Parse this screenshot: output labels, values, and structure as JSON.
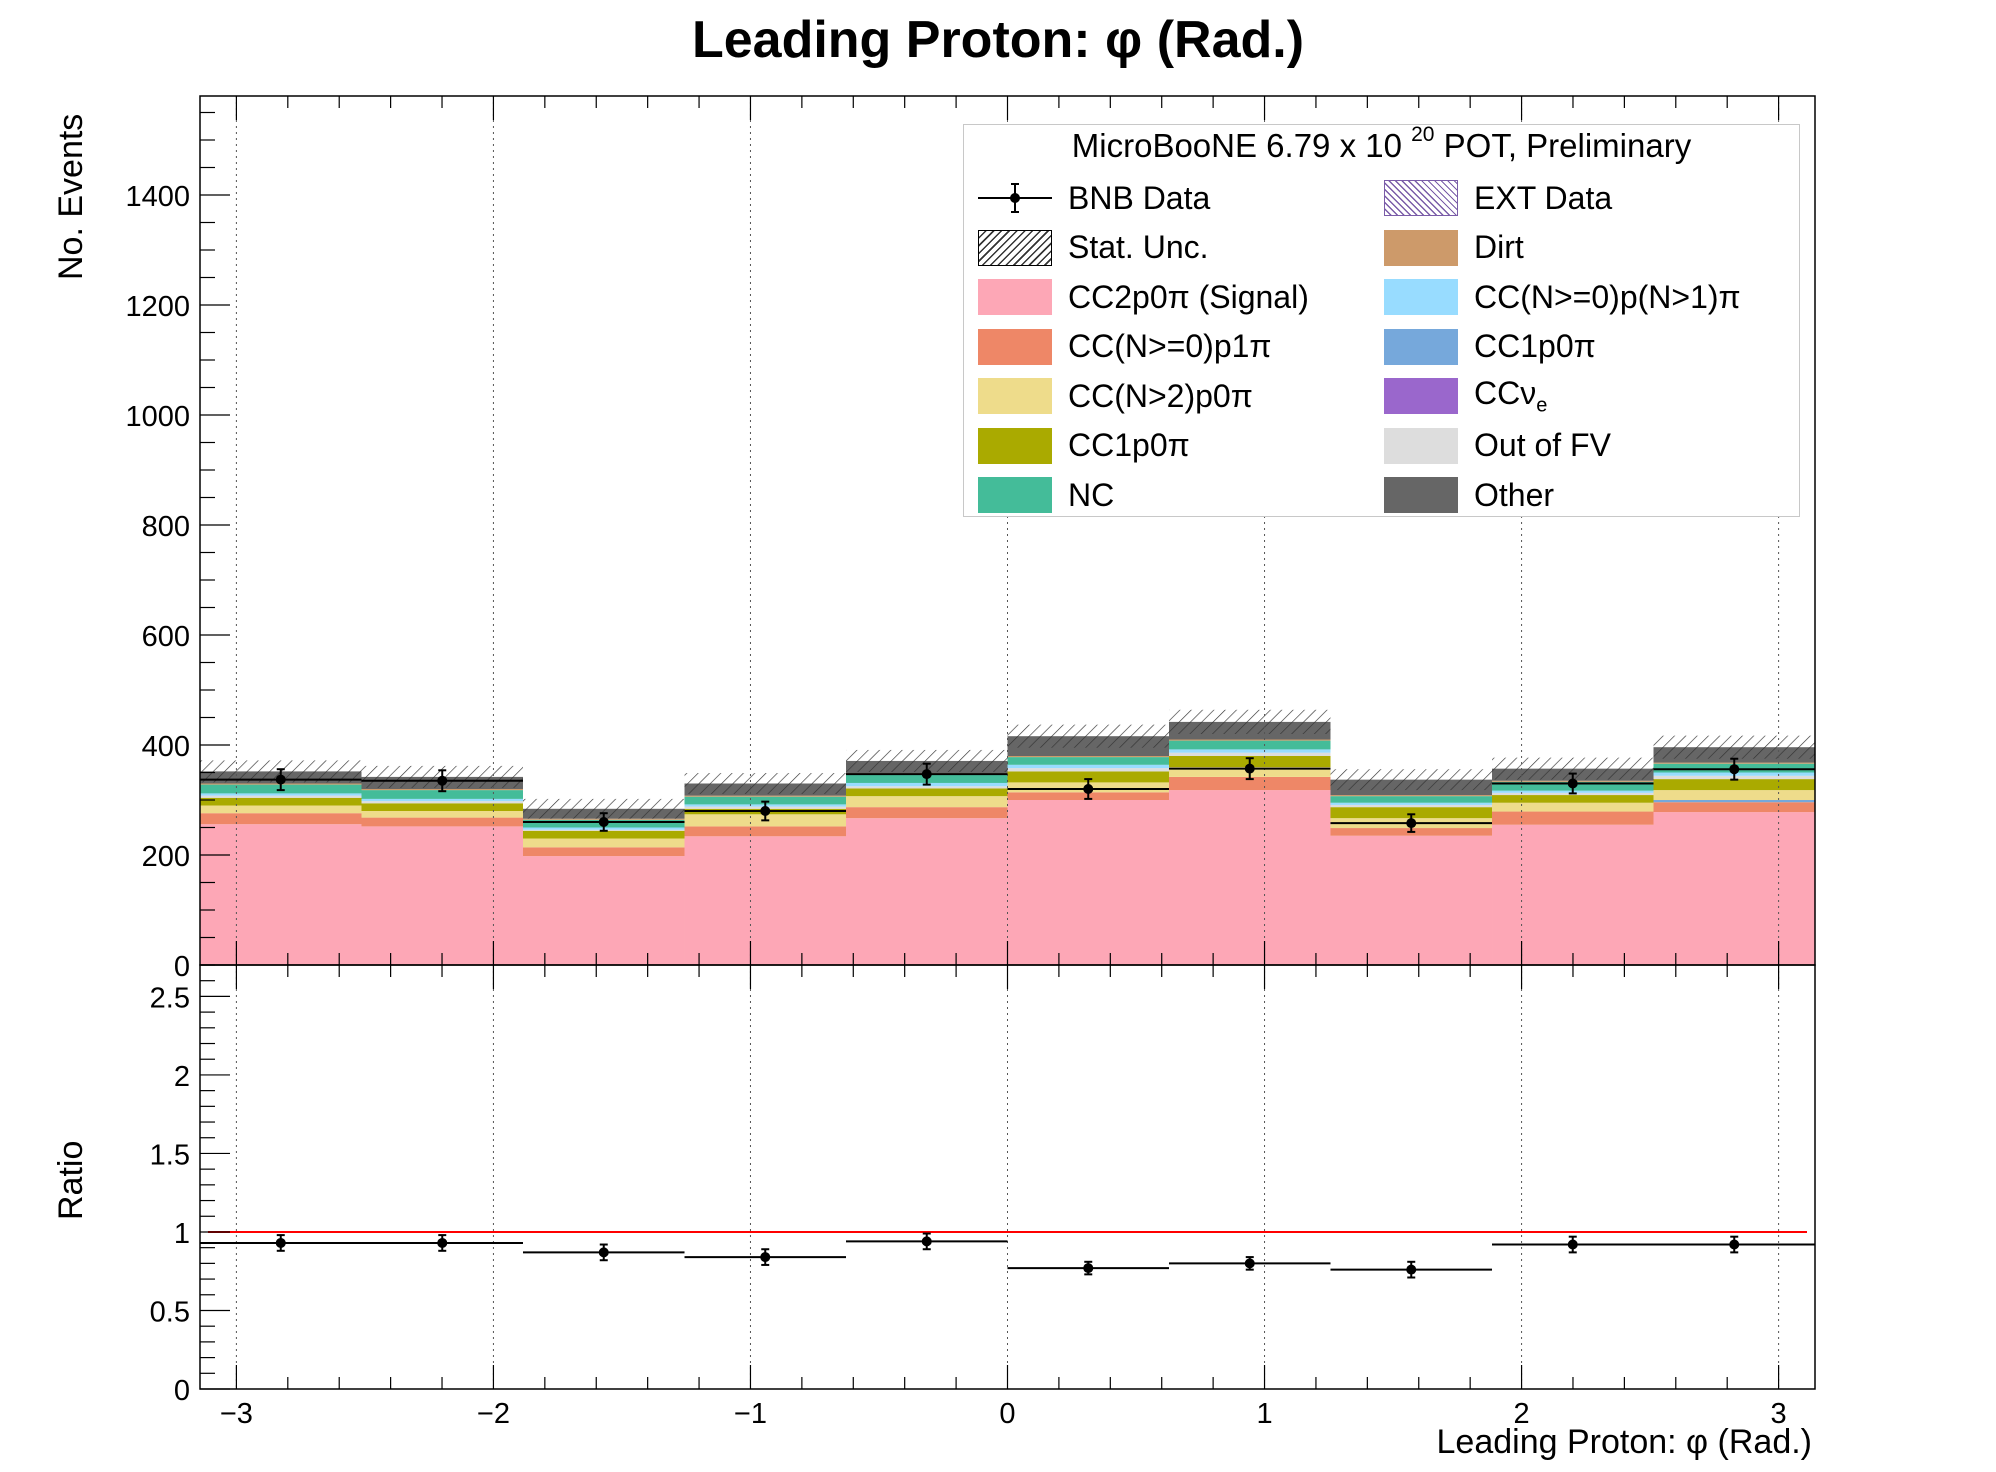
{
  "title": "Leading Proton:  φ (Rad.)",
  "legend": {
    "header_prefix": "MicroBooNE 6.79 x 10",
    "header_exponent": "20",
    "header_suffix": " POT, Preliminary",
    "items": [
      {
        "label": "BNB Data",
        "kind": "data",
        "color": "#000000"
      },
      {
        "label": "EXT Data",
        "kind": "hatch-ext",
        "color": "#7a5ca8"
      },
      {
        "label": "Stat. Unc.",
        "kind": "hatch-stat",
        "color": "#000000"
      },
      {
        "label": "Dirt",
        "kind": "fill",
        "color": "#cd9a6a"
      },
      {
        "label": "CC2p0π (Signal)",
        "kind": "fill",
        "color": "#fda7b6"
      },
      {
        "label": "CC(N>=0)p(N>1)π",
        "kind": "fill",
        "color": "#98dcff"
      },
      {
        "label": "CC(N>=0)p1π",
        "kind": "fill",
        "color": "#ee8767"
      },
      {
        "label": "CC1p0π",
        "kind": "fill",
        "color": "#76a8db"
      },
      {
        "label": "CC(N>2)p0π",
        "kind": "fill",
        "color": "#eedc8b"
      },
      {
        "label": "CCν",
        "label_sub": "e",
        "kind": "fill",
        "color": "#9a67cc"
      },
      {
        "label": "CC1p0π",
        "kind": "fill",
        "color": "#aaaa00"
      },
      {
        "label": "Out of FV",
        "kind": "fill",
        "color": "#dddddd"
      },
      {
        "label": "NC",
        "kind": "fill",
        "color": "#44bc99"
      },
      {
        "label": "Other",
        "kind": "fill",
        "color": "#666666"
      }
    ]
  },
  "chart_data": [
    {
      "type": "bar",
      "stacked": true,
      "title": "Leading Proton:  φ (Rad.)",
      "ylabel": "No. Events",
      "xlim": [
        -3.1416,
        3.1416
      ],
      "ylim": [
        0,
        1580
      ],
      "yticks": [
        0,
        200,
        400,
        600,
        800,
        1000,
        1200,
        1400
      ],
      "ytick_labels": [
        "0",
        "200",
        "400",
        "600",
        "800",
        "1000",
        "1200",
        "1400"
      ],
      "xticks": [
        -3,
        -2,
        -1,
        0,
        1,
        2,
        3
      ],
      "grid_x": true,
      "bin_edges": [
        -3.1416,
        -2.5133,
        -1.885,
        -1.2566,
        -0.6283,
        0,
        0.6283,
        1.2566,
        1.885,
        2.5133,
        3.1416
      ],
      "series": [
        {
          "name": "CC2p0π (Signal)",
          "color": "#fda7b6",
          "values": [
            256,
            252,
            198,
            234,
            267,
            300,
            318,
            235,
            255,
            278
          ]
        },
        {
          "name": "CC(N>=0)p1π",
          "color": "#ee8767",
          "values": [
            20,
            16,
            16,
            18,
            20,
            14,
            24,
            14,
            24,
            18
          ]
        },
        {
          "name": "CC1p0π",
          "color": "#76a8db",
          "values": [
            0,
            0,
            0,
            0,
            0,
            0,
            0,
            0,
            0,
            4
          ]
        },
        {
          "name": "CC(N>2)p0π",
          "color": "#eedc8b",
          "values": [
            14,
            12,
            16,
            22,
            20,
            18,
            18,
            18,
            16,
            18
          ]
        },
        {
          "name": "CC1p0π",
          "color": "#aaaa00",
          "values": [
            14,
            14,
            14,
            10,
            14,
            20,
            20,
            20,
            14,
            20
          ]
        },
        {
          "name": "Out of FV",
          "color": "#dddddd",
          "values": [
            4,
            4,
            2,
            4,
            4,
            6,
            6,
            4,
            4,
            6
          ]
        },
        {
          "name": "CC(N>=0)p(N>1)π",
          "color": "#98dcff",
          "values": [
            4,
            4,
            4,
            4,
            6,
            6,
            6,
            4,
            4,
            6
          ]
        },
        {
          "name": "NC",
          "color": "#44bc99",
          "values": [
            16,
            16,
            14,
            14,
            16,
            14,
            16,
            12,
            16,
            16
          ]
        },
        {
          "name": "Dirt",
          "color": "#cd9a6a",
          "values": [
            2,
            2,
            2,
            2,
            2,
            2,
            2,
            2,
            2,
            2
          ]
        },
        {
          "name": "CCν",
          "color": "#9a67cc",
          "values": [
            0,
            0,
            0,
            0,
            0,
            0,
            0,
            0,
            0,
            0
          ]
        },
        {
          "name": "Other",
          "color": "#666666",
          "values": [
            22,
            22,
            18,
            22,
            22,
            36,
            32,
            28,
            22,
            28
          ]
        }
      ],
      "stat_unc": [
        20,
        20,
        18,
        19,
        20,
        21,
        22,
        19,
        20,
        21
      ],
      "bnb_data": {
        "values": [
          337,
          335,
          260,
          280,
          347,
          320,
          357,
          258,
          330,
          356
        ],
        "errors": [
          19,
          19,
          16,
          17,
          19,
          18,
          19,
          16,
          18,
          19
        ]
      }
    },
    {
      "type": "scatter",
      "ylabel": "Ratio",
      "xlabel": "Leading Proton: φ (Rad.)",
      "xlim": [
        -3.1416,
        3.1416
      ],
      "ylim": [
        0,
        2.7
      ],
      "yticks": [
        0,
        0.5,
        1,
        1.5,
        2,
        2.5
      ],
      "ytick_labels": [
        "0",
        "0.5",
        "1",
        "1.5",
        "2",
        "2.5"
      ],
      "xticks": [
        -3,
        -2,
        -1,
        0,
        1,
        2,
        3
      ],
      "xtick_labels": [
        "−3",
        "−2",
        "−1",
        "0",
        "1",
        "2",
        "3"
      ],
      "grid_x": true,
      "reference_line": {
        "y": 1,
        "color": "#ff0000"
      },
      "x": [
        -2.8274,
        -2.1991,
        -1.5708,
        -0.9425,
        -0.3142,
        0.3142,
        0.9425,
        1.5708,
        2.1991,
        2.8274
      ],
      "values": [
        0.93,
        0.93,
        0.87,
        0.84,
        0.94,
        0.77,
        0.8,
        0.76,
        0.92,
        0.92
      ],
      "errors": [
        0.05,
        0.05,
        0.05,
        0.05,
        0.05,
        0.04,
        0.04,
        0.05,
        0.05,
        0.05
      ]
    }
  ]
}
